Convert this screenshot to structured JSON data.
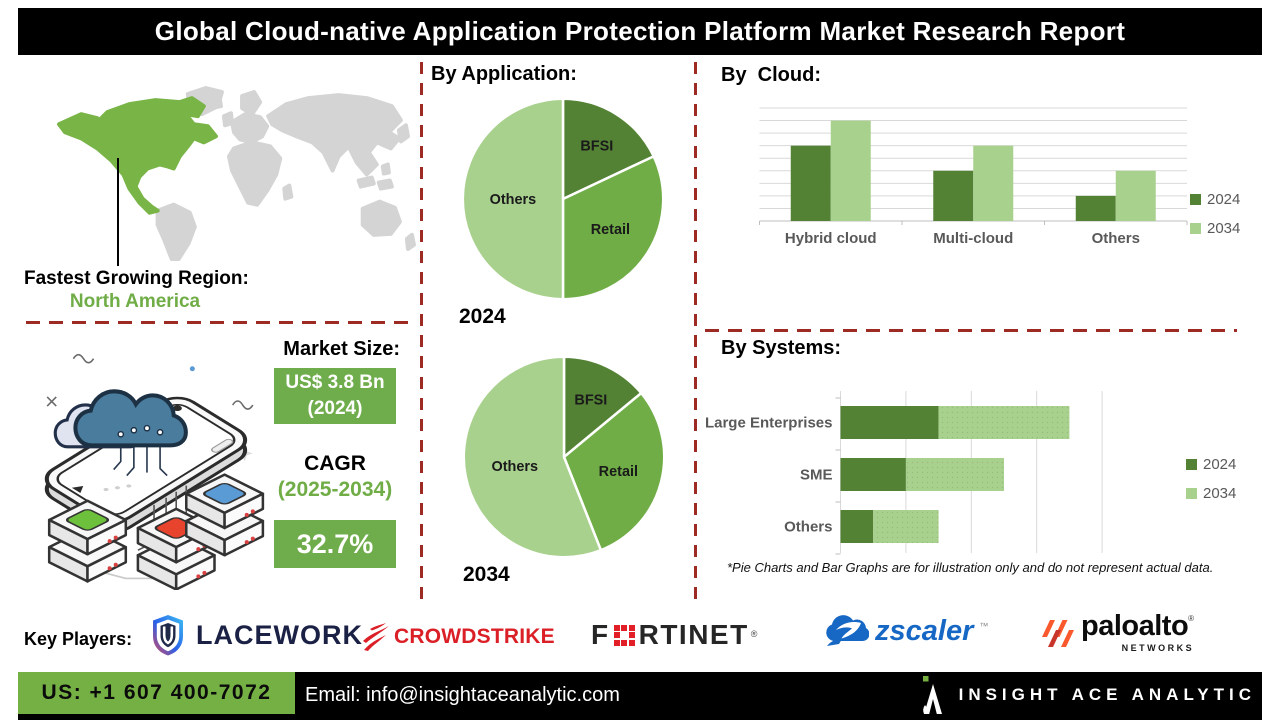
{
  "header": {
    "title": "Global Cloud-native Application Protection Platform Market Research Report"
  },
  "map_section": {
    "region_label": "Fastest Growing Region:",
    "region_value": "North America"
  },
  "market": {
    "heading": "Market Size:",
    "size_value": "US$ 3.8 Bn",
    "size_year": "(2024)",
    "cagr_label": "CAGR",
    "cagr_period": "(2025-2034)",
    "cagr_value": "32.7%"
  },
  "chart_data": [
    {
      "id": "application-2024",
      "type": "pie",
      "title": "By Application:",
      "year_label": "2024",
      "labels": [
        "BFSI",
        "Retail",
        "Others"
      ],
      "values": [
        18,
        32,
        50
      ],
      "colors": [
        "#548235",
        "#70AD47",
        "#A9D18E"
      ],
      "legend_position": "none"
    },
    {
      "id": "application-2034",
      "type": "pie",
      "title": "By Application:",
      "year_label": "2034",
      "labels": [
        "BFSI",
        "Retail",
        "Others"
      ],
      "values": [
        14,
        30,
        56
      ],
      "colors": [
        "#548235",
        "#70AD47",
        "#A9D18E"
      ],
      "legend_position": "none"
    },
    {
      "id": "cloud",
      "type": "bar",
      "title": "By  Cloud:",
      "categories": [
        "Hybrid cloud",
        "Multi-cloud",
        "Others"
      ],
      "series": [
        {
          "name": "2024",
          "values": [
            6,
            4,
            2
          ],
          "color": "#548235"
        },
        {
          "name": "2034",
          "values": [
            8,
            6,
            4
          ],
          "color": "#A9D18E"
        }
      ],
      "ylim": [
        0,
        9
      ],
      "grid": true,
      "legend_position": "right"
    },
    {
      "id": "systems",
      "type": "stacked-hbar",
      "title": "By Systems:",
      "categories": [
        "Large Enterprises",
        "SME",
        "Others"
      ],
      "series": [
        {
          "name": "2024",
          "values": [
            1.5,
            1.0,
            0.5
          ],
          "color": "#548235"
        },
        {
          "name": "2034",
          "values": [
            2.0,
            1.5,
            1.0
          ],
          "color": "#A9D18E"
        }
      ],
      "xlim": [
        0,
        4
      ],
      "grid": true,
      "legend_position": "right"
    }
  ],
  "disclaimer": "*Pie Charts and Bar Graphs are for illustration only and do not represent actual data.",
  "key_players": {
    "label": "Key Players:",
    "companies": [
      {
        "name": "Lacework",
        "display": "LACEWORK"
      },
      {
        "name": "CrowdStrike",
        "display": "CROWDSTRIKE"
      },
      {
        "name": "Fortinet",
        "display_pre": "F",
        "display_post": "RTINET",
        "mark": "®"
      },
      {
        "name": "Zscaler",
        "display": "zscaler",
        "mark": "™"
      },
      {
        "name": "Palo Alto Networks",
        "display": "paloalto",
        "mark": "®",
        "sub": "NETWORKS"
      }
    ]
  },
  "footer": {
    "phone": "US: +1 607 400-7072",
    "email": "Email: info@insightaceanalytic.com",
    "brand": "INSIGHT ACE ANALYTIC"
  },
  "colors": {
    "dark_green": "#548235",
    "mid_green": "#70AD47",
    "light_green": "#A9D18E",
    "map_green": "#79B447",
    "map_gray": "#D4D4D4",
    "dashed_red": "#9D2B23",
    "footer_green": "#74B043",
    "title_bg": "#000000"
  }
}
